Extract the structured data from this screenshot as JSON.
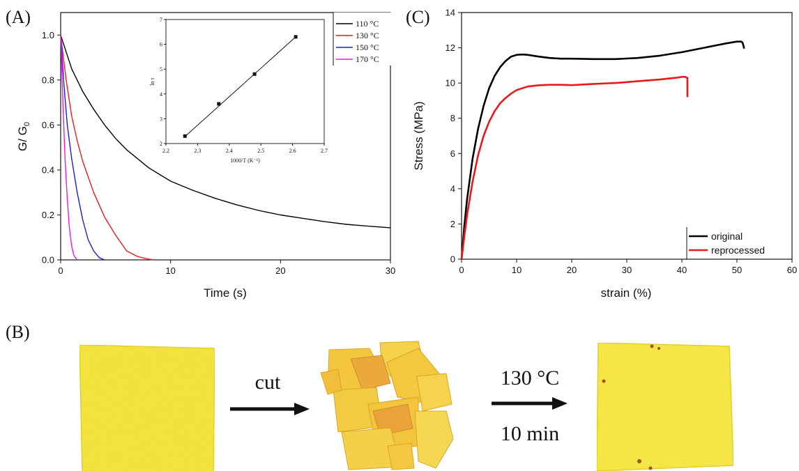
{
  "panels": {
    "a": "(A)",
    "b": "(B)",
    "c": "(C)"
  },
  "chart_data": [
    {
      "type": "line",
      "panel": "(A)",
      "xlabel": "Time (s)",
      "ylabel": "G/ G",
      "ylabel_sub": "0",
      "xlim": [
        0,
        30
      ],
      "ylim": [
        0,
        1.1
      ],
      "xticks": [
        0,
        10,
        20,
        30
      ],
      "yticks": [
        0.0,
        0.2,
        0.4,
        0.6,
        0.8,
        1.0
      ],
      "legend_position": "top-right",
      "series": [
        {
          "name": "110 °C",
          "color": "#000000",
          "x": [
            0,
            1,
            2,
            3,
            4,
            5,
            6,
            7,
            8,
            9,
            10,
            12,
            14,
            16,
            18,
            20,
            22,
            24,
            26,
            28,
            30
          ],
          "y": [
            1.0,
            0.85,
            0.75,
            0.67,
            0.6,
            0.54,
            0.49,
            0.45,
            0.41,
            0.38,
            0.35,
            0.31,
            0.275,
            0.245,
            0.22,
            0.2,
            0.185,
            0.17,
            0.158,
            0.15,
            0.143
          ]
        },
        {
          "name": "130 °C",
          "color": "#e8191c",
          "x": [
            0,
            0.5,
            1,
            1.5,
            2,
            3,
            4,
            5,
            6,
            7,
            8,
            8.5
          ],
          "y": [
            1.0,
            0.8,
            0.64,
            0.53,
            0.44,
            0.3,
            0.19,
            0.11,
            0.04,
            0.015,
            0.003,
            0.0
          ]
        },
        {
          "name": "150 °C",
          "color": "#1a1ae6",
          "x": [
            0,
            0.3,
            0.6,
            1,
            1.5,
            2,
            2.5,
            3,
            3.5,
            4
          ],
          "y": [
            1.0,
            0.78,
            0.6,
            0.45,
            0.3,
            0.18,
            0.09,
            0.04,
            0.01,
            0.0
          ]
        },
        {
          "name": "170 °C",
          "color": "#e619e6",
          "x": [
            0,
            0.2,
            0.4,
            0.6,
            0.8,
            1.0,
            1.2,
            1.5
          ],
          "y": [
            1.0,
            0.7,
            0.45,
            0.27,
            0.14,
            0.06,
            0.02,
            0.0
          ]
        }
      ],
      "inset": {
        "type": "scatter",
        "xlabel": "1000/T (K⁻¹)",
        "ylabel": "ln τ",
        "xlim": [
          2.2,
          2.7
        ],
        "ylim": [
          2,
          7
        ],
        "xticks": [
          "2.2",
          "2.3",
          "2.4",
          "2.5",
          "2.6",
          "2.7"
        ],
        "yticks": [
          "2",
          "3",
          "4",
          "5",
          "6",
          "7"
        ],
        "x": [
          2.26,
          2.367,
          2.48,
          2.61
        ],
        "y": [
          2.3,
          3.6,
          4.8,
          6.3
        ],
        "fit": [
          [
            2.26,
            2.28
          ],
          [
            2.61,
            6.3
          ]
        ]
      }
    },
    {
      "type": "line",
      "panel": "(C)",
      "xlabel": "strain (%)",
      "ylabel": "Stress (MPa)",
      "xlim": [
        0,
        60
      ],
      "ylim": [
        0,
        14
      ],
      "xticks": [
        0,
        10,
        20,
        30,
        40,
        50,
        60
      ],
      "yticks": [
        0,
        2,
        4,
        6,
        8,
        10,
        12,
        14
      ],
      "legend_position": "bottom-right",
      "series": [
        {
          "name": "original",
          "color": "#000000",
          "x": [
            0,
            0.5,
            1,
            2,
            3,
            4,
            5,
            6,
            7,
            8,
            9,
            10,
            11,
            12,
            14,
            16,
            18,
            20,
            24,
            28,
            32,
            36,
            40,
            44,
            48,
            50,
            50.8,
            51,
            51.2,
            51.3
          ],
          "y": [
            0,
            1.9,
            3.4,
            5.7,
            7.4,
            8.7,
            9.7,
            10.4,
            10.9,
            11.25,
            11.5,
            11.6,
            11.62,
            11.6,
            11.5,
            11.42,
            11.38,
            11.38,
            11.36,
            11.36,
            11.42,
            11.55,
            11.75,
            12.0,
            12.25,
            12.35,
            12.35,
            12.3,
            12.1,
            11.95
          ]
        },
        {
          "name": "reprocessed",
          "color": "#e8191c",
          "x": [
            0,
            0.5,
            1,
            2,
            3,
            4,
            5,
            6,
            7,
            8,
            9,
            10,
            12,
            14,
            16,
            18,
            20,
            24,
            28,
            32,
            36,
            39,
            40,
            40.6,
            40.9,
            41,
            41,
            41
          ],
          "y": [
            0,
            1.3,
            2.5,
            4.4,
            5.9,
            7.0,
            7.8,
            8.4,
            8.85,
            9.15,
            9.4,
            9.6,
            9.8,
            9.87,
            9.9,
            9.9,
            9.88,
            9.95,
            10.0,
            10.1,
            10.2,
            10.3,
            10.35,
            10.35,
            10.3,
            10.3,
            9.6,
            9.2
          ]
        }
      ]
    }
  ],
  "photo_panel": {
    "step1_label": "cut",
    "step2_temp": "130 °C",
    "step2_time": "10 min",
    "sample_color": "#f2e33a",
    "pieces_color": "#f2b531"
  }
}
